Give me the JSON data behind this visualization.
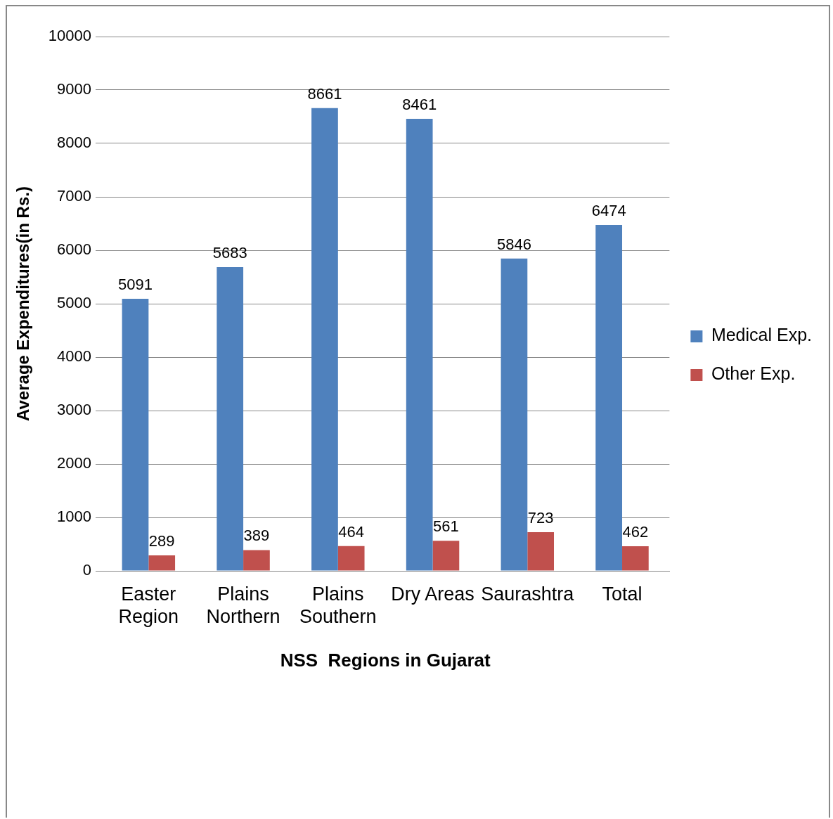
{
  "chart_data": {
    "type": "bar",
    "xlabel": "NSS  Regions in Gujarat",
    "ylabel": "Average Expenditures(in Rs.)",
    "categories": [
      "Easter Region",
      "Plains Northern",
      "Plains Southern",
      "Dry Areas",
      "Saurashtra",
      "Total"
    ],
    "series": [
      {
        "name": "Medical Exp.",
        "color": "#4f81bd",
        "values": [
          5091,
          5683,
          8661,
          8461,
          5846,
          6474
        ]
      },
      {
        "name": "Other Exp.",
        "color": "#c0504d",
        "values": [
          289,
          389,
          464,
          561,
          723,
          462
        ]
      }
    ],
    "ylim": [
      0,
      10000
    ],
    "yticks": [
      0,
      1000,
      2000,
      3000,
      4000,
      5000,
      6000,
      7000,
      8000,
      9000,
      10000
    ],
    "grid": "y",
    "legend": "right",
    "data_labels": true
  }
}
